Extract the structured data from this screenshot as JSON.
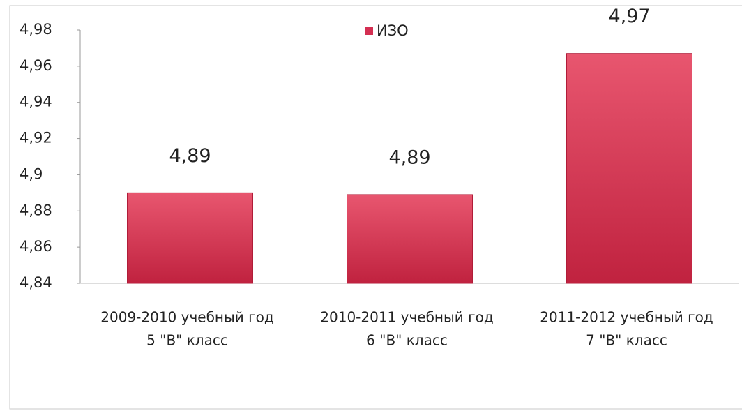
{
  "chart_data": {
    "type": "bar",
    "categories": [
      [
        "2009-2010 учебный год",
        "5 \"В\" класс"
      ],
      [
        "2010-2011 учебный год",
        "6 \"В\" класс"
      ],
      [
        "2011-2012 учебный год",
        "7 \"В\" класс"
      ]
    ],
    "series": [
      {
        "name": "ИЗО",
        "color": "#d42f52",
        "values": [
          4.89,
          4.889,
          4.967
        ],
        "value_labels": [
          "4,89",
          "4,89",
          "4,97"
        ]
      }
    ],
    "ylim": [
      4.84,
      4.98
    ],
    "yticks": [
      {
        "value": 4.84,
        "label": "4,84"
      },
      {
        "value": 4.86,
        "label": "4,86"
      },
      {
        "value": 4.88,
        "label": "4,88"
      },
      {
        "value": 4.9,
        "label": "4,9"
      },
      {
        "value": 4.92,
        "label": "4,92"
      },
      {
        "value": 4.94,
        "label": "4,94"
      },
      {
        "value": 4.96,
        "label": "4,96"
      },
      {
        "value": 4.98,
        "label": "4,98"
      }
    ],
    "legend": "top"
  }
}
